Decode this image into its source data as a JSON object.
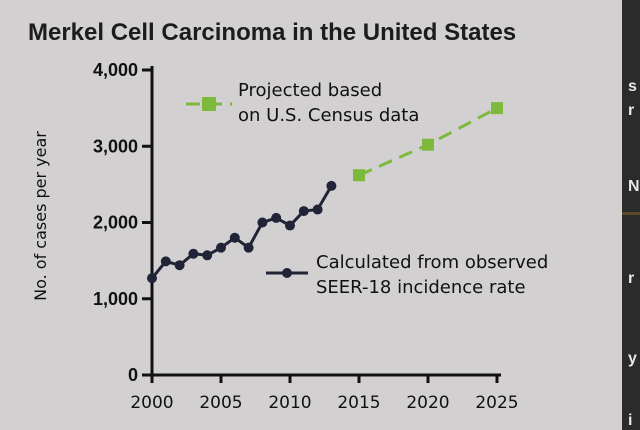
{
  "chart_data": {
    "type": "line",
    "title": "Merkel Cell Carcinoma in the United States",
    "xlabel": "",
    "ylabel": "No. of cases per year",
    "xlim": [
      2000,
      2025
    ],
    "ylim": [
      0,
      4000
    ],
    "x_ticks": [
      "2000",
      "2005",
      "2010",
      "2015",
      "2020",
      "2025"
    ],
    "y_ticks": [
      "0",
      "1,000",
      "2,000",
      "3,000",
      "4,000"
    ],
    "x_tick_values": [
      2000,
      2005,
      2010,
      2015,
      2020,
      2025
    ],
    "y_tick_values": [
      0,
      1000,
      2000,
      3000,
      4000
    ],
    "grid": false,
    "series": [
      {
        "name": "observed",
        "legend_lines": [
          "Calculated from observed",
          "SEER-18 incidence rate"
        ],
        "color": "#202436",
        "line_style": "solid",
        "marker": "circle",
        "x": [
          2000,
          2001,
          2002,
          2003,
          2004,
          2005,
          2006,
          2007,
          2008,
          2009,
          2010,
          2011,
          2012,
          2013
        ],
        "y": [
          1270,
          1490,
          1440,
          1590,
          1570,
          1670,
          1800,
          1670,
          2000,
          2060,
          1960,
          2150,
          2170,
          2480
        ]
      },
      {
        "name": "projected",
        "legend_lines": [
          "Projected based",
          "on U.S. Census data"
        ],
        "color": "#7dba3c",
        "line_style": "dashed",
        "marker": "square",
        "x": [
          2015,
          2020,
          2025
        ],
        "y": [
          2620,
          3020,
          3500
        ]
      }
    ]
  }
}
